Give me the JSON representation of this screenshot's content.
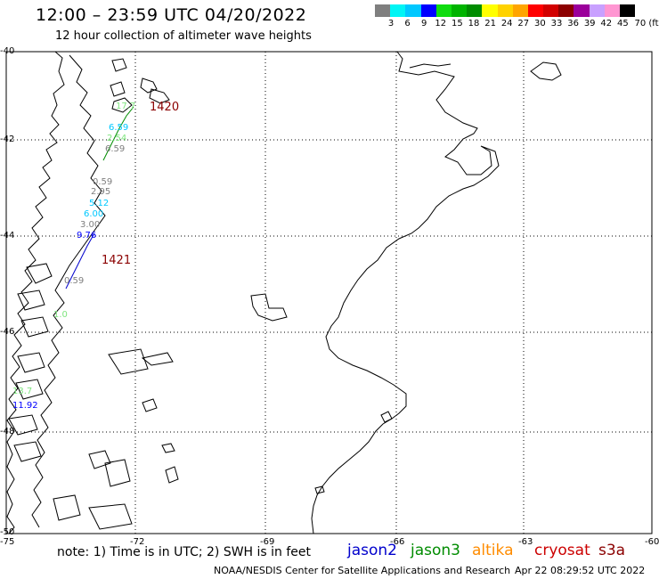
{
  "header": {
    "title": "12:00 – 23:59 UTC 04/20/2022",
    "subtitle": "12 hour collection of altimeter wave heights"
  },
  "legend": {
    "colors": [
      "#7f7f7f",
      "#00f5f5",
      "#00c8ff",
      "#0000ff",
      "#0fdc0f",
      "#00b400",
      "#008c00",
      "#ffff00",
      "#ffd200",
      "#ffa500",
      "#ff0000",
      "#d20000",
      "#8c0000",
      "#9b009b",
      "#c8a0ff",
      "#ff96d2",
      "#000000"
    ],
    "labels": [
      "3",
      "6",
      "9",
      "12",
      "15",
      "18",
      "21",
      "24",
      "27",
      "30",
      "33",
      "36",
      "39",
      "42",
      "45",
      "70 (ft)"
    ]
  },
  "axes": {
    "lat_labels": [
      "-40",
      "-42",
      "-44",
      "-46",
      "-48",
      "-50"
    ],
    "lon_labels": [
      "-75",
      "-72",
      "-69",
      "-66",
      "-63",
      "-60"
    ]
  },
  "tracks": [
    {
      "label": "1420",
      "color": "#8b0000"
    },
    {
      "label": "1421",
      "color": "#8b0000"
    }
  ],
  "observations": [
    {
      "v": "17.7",
      "c": "#7fe57f"
    },
    {
      "v": "6.59",
      "c": "#00c8ff"
    },
    {
      "v": "2.54",
      "c": "#7fe57f"
    },
    {
      "v": "6.59",
      "c": "#7f7f7f"
    },
    {
      "v": "0.59",
      "c": "#7f7f7f"
    },
    {
      "v": "2.95",
      "c": "#7f7f7f"
    },
    {
      "v": "5.12",
      "c": "#00c8ff"
    },
    {
      "v": "6.00",
      "c": "#00c8ff"
    },
    {
      "v": "3.00",
      "c": "#7f7f7f"
    },
    {
      "v": "9.76",
      "c": "#0000ff"
    },
    {
      "v": "0.59",
      "c": "#7f7f7f"
    },
    {
      "v": "1.0",
      "c": "#7fe57f"
    },
    {
      "v": "11.92",
      "c": "#0000ff"
    },
    {
      "v": "13.7",
      "c": "#7fe57f"
    }
  ],
  "footer": {
    "note": "note: 1) Time is in UTC; 2) SWH is in feet",
    "satellites": [
      {
        "name": "jason2",
        "color": "#0000cc"
      },
      {
        "name": "jason3",
        "color": "#008c00"
      },
      {
        "name": "altika",
        "color": "#ff8c00"
      },
      {
        "name": "cryosat",
        "color": "#cc0000"
      },
      {
        "name": "s3a",
        "color": "#8b0000"
      }
    ],
    "credit": "NOAA/NESDIS Center for Satellite Applications and Research",
    "timestamp": "Apr 22 08:29:52 UTC 2022"
  }
}
